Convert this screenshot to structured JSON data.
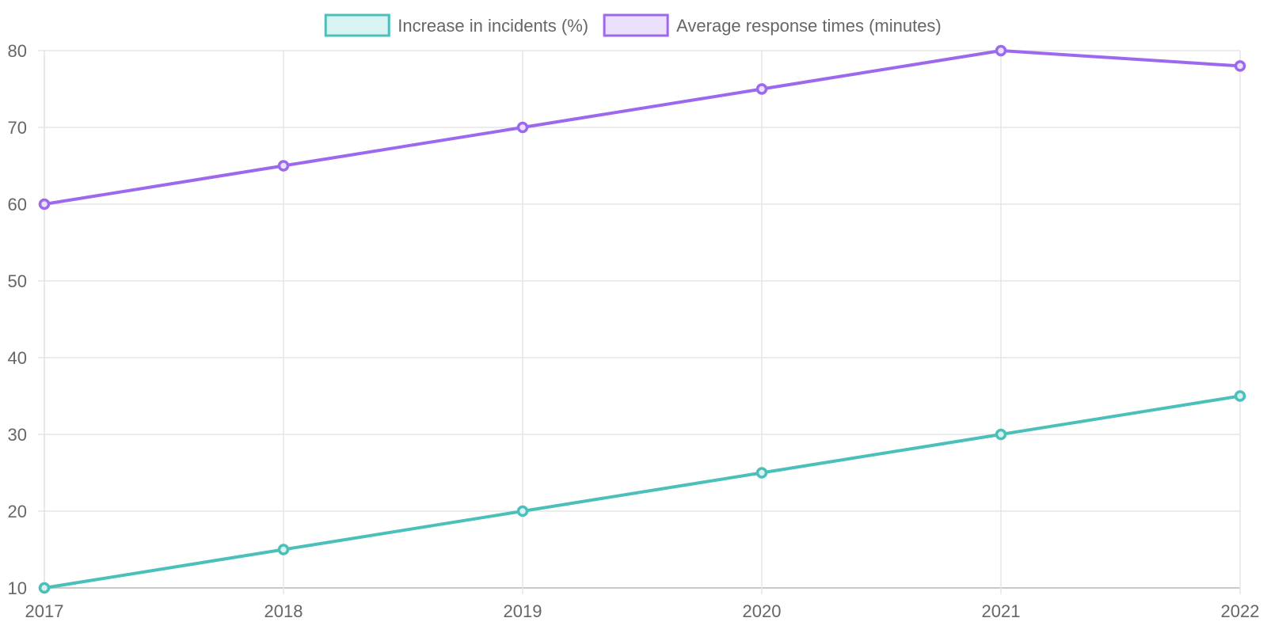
{
  "chart_data": {
    "type": "line",
    "categories": [
      "2017",
      "2018",
      "2019",
      "2020",
      "2021",
      "2022"
    ],
    "series": [
      {
        "name": "Increase in incidents (%)",
        "values": [
          10,
          15,
          20,
          25,
          30,
          35
        ],
        "color": "#4bbfba",
        "fill": "#d8f3f1"
      },
      {
        "name": "Average response times (minutes)",
        "values": [
          60,
          65,
          70,
          75,
          80,
          78
        ],
        "color": "#9b68ee",
        "fill": "#ebe1fc"
      }
    ],
    "ylim": [
      10,
      80
    ],
    "yticks": [
      10,
      20,
      30,
      40,
      50,
      60,
      70,
      80
    ],
    "grid": true,
    "legend_position": "top"
  }
}
